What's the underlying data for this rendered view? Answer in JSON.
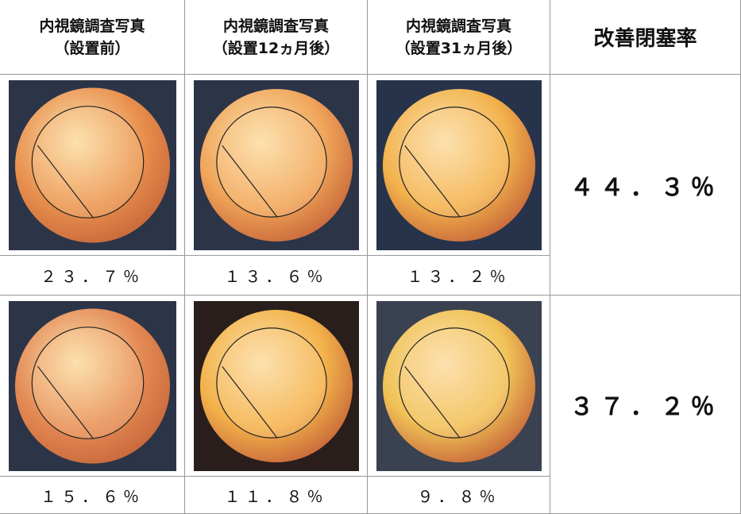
{
  "table": {
    "headers": [
      {
        "line1": "内視鏡調査写真",
        "line2": "（設置前）"
      },
      {
        "line1": "内視鏡調査写真",
        "line2": "（設置12ヵ月後）"
      },
      {
        "line1": "内視鏡調査写真",
        "line2": "（設置31ヵ月後）"
      },
      {
        "line1": "改善閉塞率"
      }
    ],
    "rows": [
      {
        "values": [
          "２３．７％",
          "１３．６％",
          "１３．２％"
        ],
        "improvement": "４４．３％"
      },
      {
        "values": [
          "１５．６％",
          "１１．８％",
          "９．８％"
        ],
        "improvement": "３７．２％"
      }
    ]
  }
}
